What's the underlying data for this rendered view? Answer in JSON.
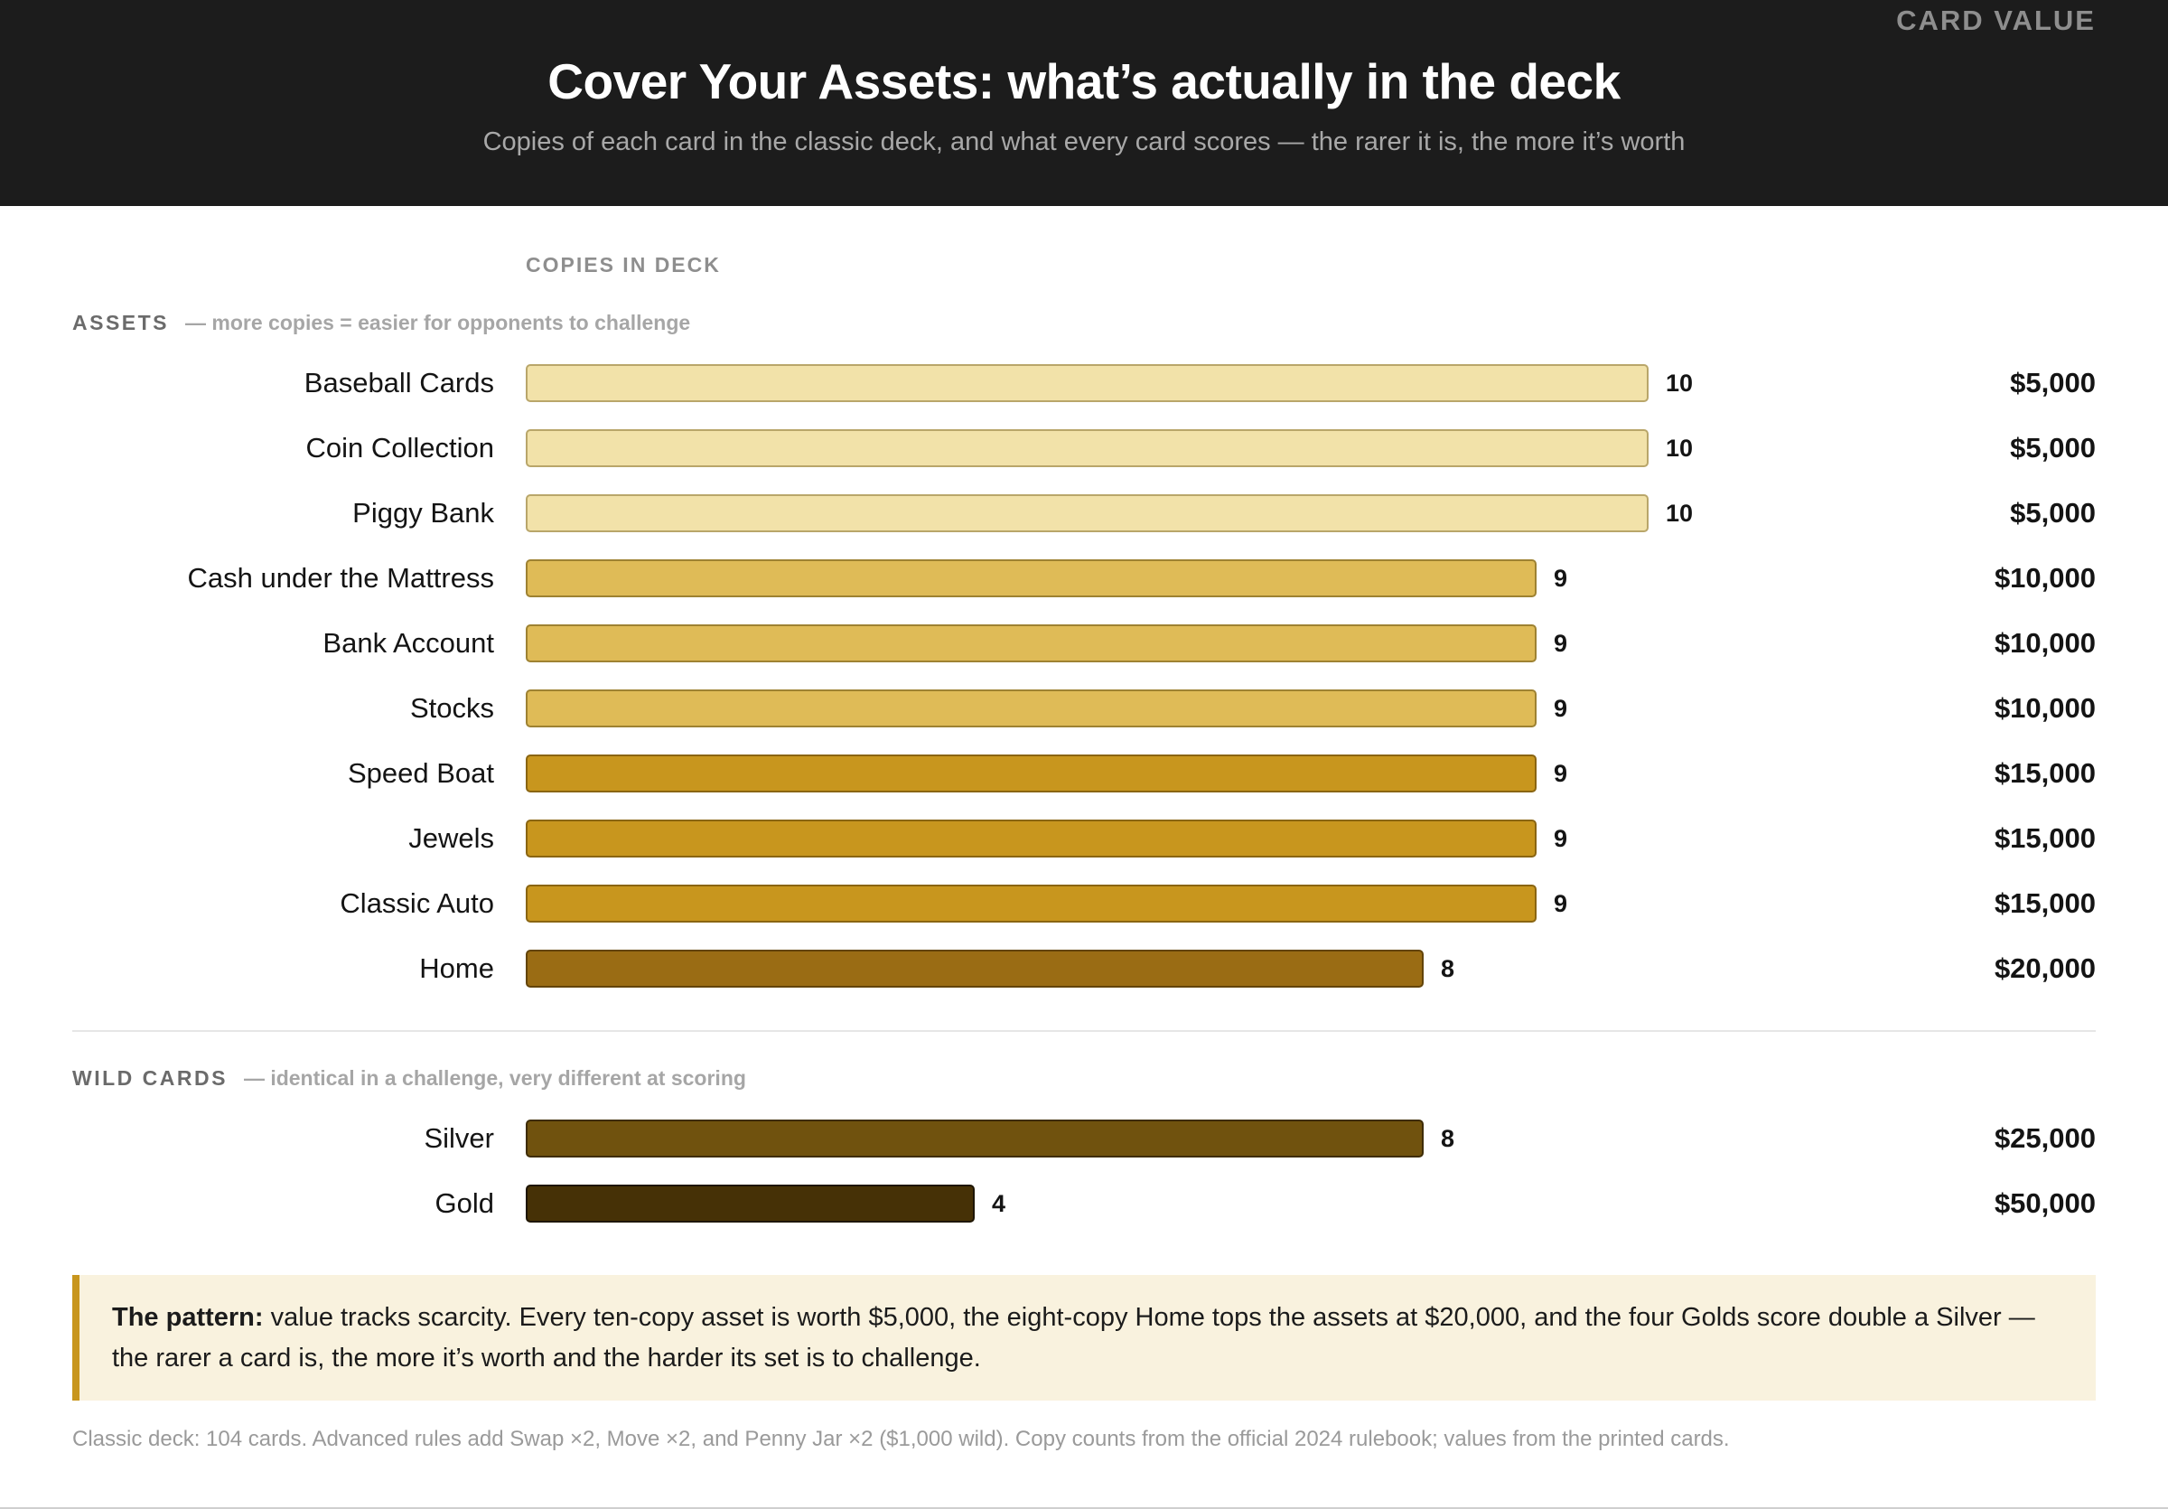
{
  "header": {
    "title": "Cover Your Assets: what’s actually in the deck",
    "subtitle": "Copies of each card in the classic deck, and what every card scores — the rarer it is, the more it’s worth"
  },
  "columns": {
    "copies": "COPIES IN DECK",
    "value": "CARD VALUE"
  },
  "sections": {
    "assets": {
      "name": "ASSETS",
      "note": "— more copies = easier for opponents to challenge"
    },
    "wild": {
      "name": "WILD CARDS",
      "note": "— identical in a challenge, very different at scoring"
    }
  },
  "chart_data": {
    "type": "bar",
    "orientation": "horizontal",
    "x_max": 10,
    "xlabel": "COPIES IN DECK",
    "groups": [
      {
        "name": "ASSETS",
        "rows": [
          {
            "label": "Baseball Cards",
            "copies": 10,
            "value_label": "$5,000",
            "value": 5000,
            "color": "#f2e2a9",
            "border": "#b9a66a"
          },
          {
            "label": "Coin Collection",
            "copies": 10,
            "value_label": "$5,000",
            "value": 5000,
            "color": "#f2e2a9",
            "border": "#b9a66a"
          },
          {
            "label": "Piggy Bank",
            "copies": 10,
            "value_label": "$5,000",
            "value": 5000,
            "color": "#f2e2a9",
            "border": "#b9a66a"
          },
          {
            "label": "Cash under the Mattress",
            "copies": 9,
            "value_label": "$10,000",
            "value": 10000,
            "color": "#dfbb57",
            "border": "#9e8232"
          },
          {
            "label": "Bank Account",
            "copies": 9,
            "value_label": "$10,000",
            "value": 10000,
            "color": "#dfbb57",
            "border": "#9e8232"
          },
          {
            "label": "Stocks",
            "copies": 9,
            "value_label": "$10,000",
            "value": 10000,
            "color": "#dfbb57",
            "border": "#9e8232"
          },
          {
            "label": "Speed Boat",
            "copies": 9,
            "value_label": "$15,000",
            "value": 15000,
            "color": "#c8961e",
            "border": "#8a6512"
          },
          {
            "label": "Jewels",
            "copies": 9,
            "value_label": "$15,000",
            "value": 15000,
            "color": "#c8961e",
            "border": "#8a6512"
          },
          {
            "label": "Classic Auto",
            "copies": 9,
            "value_label": "$15,000",
            "value": 15000,
            "color": "#c8961e",
            "border": "#8a6512"
          },
          {
            "label": "Home",
            "copies": 8,
            "value_label": "$20,000",
            "value": 20000,
            "color": "#9a6c14",
            "border": "#634409"
          }
        ]
      },
      {
        "name": "WILD CARDS",
        "rows": [
          {
            "label": "Silver",
            "copies": 8,
            "value_label": "$25,000",
            "value": 25000,
            "color": "#70520e",
            "border": "#3e2c05"
          },
          {
            "label": "Gold",
            "copies": 4,
            "value_label": "$50,000",
            "value": 50000,
            "color": "#463106",
            "border": "#1e1502"
          }
        ]
      }
    ]
  },
  "callout": {
    "lead": "The pattern:",
    "text": " value tracks scarcity. Every ten-copy asset is worth $5,000, the eight-copy Home tops the assets at $20,000, and the four Golds score double a Silver — the rarer a card is, the more it’s worth and the harder its set is to challenge."
  },
  "footnote": "Classic deck: 104 cards. Advanced rules add Swap ×2, Move ×2, and Penny Jar ×2 ($1,000 wild). Copy counts from the official 2024 rulebook; values from the printed cards."
}
